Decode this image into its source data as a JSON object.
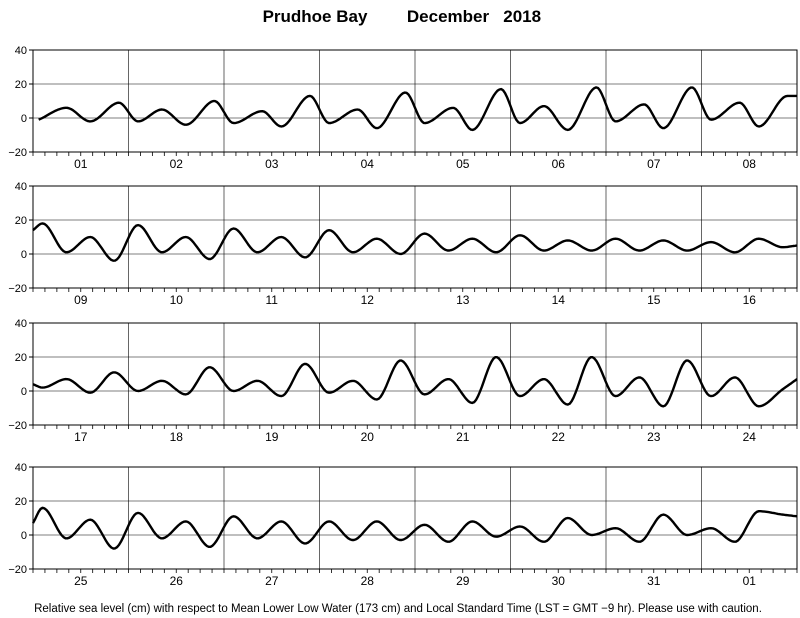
{
  "header": {
    "station": "Prudhoe Bay",
    "period": "December   2018"
  },
  "footer": {
    "note": "Relative sea level (cm) with respect to Mean Lower Low Water (173 cm) and Local Standard Time (LST = GMT −9 hr). Please use with caution."
  },
  "chart_data": [
    {
      "type": "line",
      "title": "",
      "xlabel": "",
      "ylabel": "",
      "ylim": [
        -20,
        40
      ],
      "y_ticks": [
        "40",
        "20",
        "0",
        "−20"
      ],
      "grid": true,
      "categories": [
        "01",
        "02",
        "03",
        "04",
        "05",
        "06",
        "07",
        "08"
      ],
      "series": [
        {
          "x": [
            0.06,
            0.35,
            0.6,
            0.9,
            1.1,
            1.35,
            1.6,
            1.9,
            2.1,
            2.4,
            2.6,
            2.9,
            3.1,
            3.4,
            3.6,
            3.9,
            4.1,
            4.4,
            4.6,
            4.9,
            5.1,
            5.35,
            5.6,
            5.9,
            6.1,
            6.4,
            6.6,
            6.9,
            7.1,
            7.4,
            7.6,
            7.9,
            8.0
          ],
          "values": [
            -1,
            6,
            -2,
            9,
            -2,
            5,
            -4,
            10,
            -3,
            4,
            -5,
            13,
            -3,
            5,
            -6,
            15,
            -3,
            6,
            -7,
            17,
            -3,
            7,
            -7,
            18,
            -2,
            8,
            -6,
            18,
            -1,
            9,
            -5,
            13,
            13
          ]
        }
      ]
    },
    {
      "type": "line",
      "title": "",
      "xlabel": "",
      "ylabel": "",
      "ylim": [
        -20,
        40
      ],
      "y_ticks": [
        "40",
        "20",
        "0",
        "−20"
      ],
      "grid": true,
      "categories": [
        "09",
        "10",
        "11",
        "12",
        "13",
        "14",
        "15",
        "16"
      ],
      "series": [
        {
          "x": [
            0.0,
            0.1,
            0.35,
            0.6,
            0.85,
            1.1,
            1.35,
            1.6,
            1.85,
            2.1,
            2.35,
            2.6,
            2.85,
            3.1,
            3.35,
            3.6,
            3.85,
            4.1,
            4.35,
            4.6,
            4.85,
            5.1,
            5.35,
            5.6,
            5.85,
            6.1,
            6.35,
            6.6,
            6.85,
            7.1,
            7.35,
            7.6,
            7.85,
            8.0
          ],
          "values": [
            14,
            18,
            1,
            10,
            -4,
            17,
            1,
            10,
            -3,
            15,
            1,
            10,
            -2,
            14,
            1,
            9,
            0,
            12,
            2,
            9,
            1,
            11,
            2,
            8,
            2,
            9,
            2,
            8,
            2,
            7,
            1,
            9,
            4,
            5
          ]
        }
      ]
    },
    {
      "type": "line",
      "title": "",
      "xlabel": "",
      "ylabel": "",
      "ylim": [
        -20,
        40
      ],
      "y_ticks": [
        "40",
        "20",
        "0",
        "−20"
      ],
      "grid": true,
      "categories": [
        "17",
        "18",
        "19",
        "20",
        "21",
        "22",
        "23",
        "24"
      ],
      "series": [
        {
          "x": [
            0.0,
            0.1,
            0.35,
            0.6,
            0.85,
            1.1,
            1.35,
            1.6,
            1.85,
            2.1,
            2.35,
            2.6,
            2.85,
            3.1,
            3.35,
            3.6,
            3.85,
            4.1,
            4.35,
            4.6,
            4.85,
            5.1,
            5.35,
            5.6,
            5.85,
            6.1,
            6.35,
            6.6,
            6.85,
            7.1,
            7.35,
            7.6,
            7.85,
            8.0
          ],
          "values": [
            4,
            2,
            7,
            -1,
            11,
            0,
            6,
            -2,
            14,
            0,
            6,
            -3,
            16,
            -1,
            6,
            -5,
            18,
            -2,
            7,
            -7,
            20,
            -3,
            7,
            -8,
            20,
            -3,
            8,
            -9,
            18,
            -3,
            8,
            -9,
            1,
            7
          ]
        }
      ]
    },
    {
      "type": "line",
      "title": "",
      "xlabel": "",
      "ylabel": "",
      "ylim": [
        -20,
        40
      ],
      "y_ticks": [
        "40",
        "20",
        "0",
        "−20"
      ],
      "grid": true,
      "categories": [
        "25",
        "26",
        "27",
        "28",
        "29",
        "30",
        "31",
        "01"
      ],
      "series": [
        {
          "x": [
            0.0,
            0.1,
            0.35,
            0.6,
            0.85,
            1.1,
            1.35,
            1.6,
            1.85,
            2.1,
            2.35,
            2.6,
            2.85,
            3.1,
            3.35,
            3.6,
            3.85,
            4.1,
            4.35,
            4.6,
            4.85,
            5.1,
            5.35,
            5.6,
            5.85,
            6.1,
            6.35,
            6.6,
            6.85,
            7.1,
            7.35,
            7.6,
            7.85,
            8.0
          ],
          "values": [
            7,
            16,
            -2,
            9,
            -8,
            13,
            -2,
            8,
            -7,
            11,
            -2,
            8,
            -5,
            8,
            -3,
            8,
            -3,
            6,
            -4,
            8,
            -1,
            5,
            -4,
            10,
            0,
            4,
            -4,
            12,
            0,
            4,
            -4,
            14,
            12,
            11
          ]
        }
      ]
    }
  ]
}
